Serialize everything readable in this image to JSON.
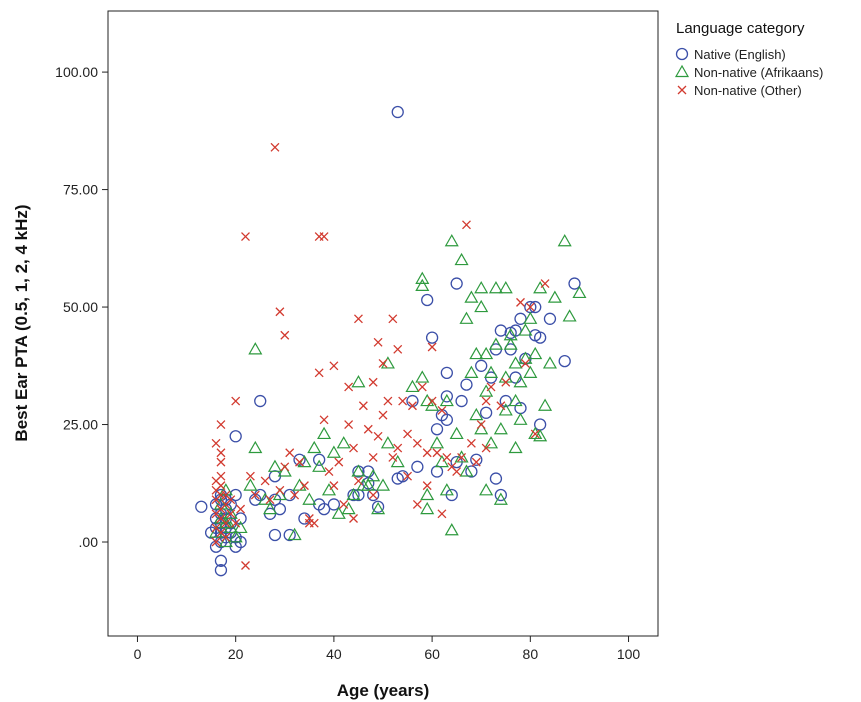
{
  "chart_data": {
    "type": "scatter",
    "xlabel": "Age (years)",
    "ylabel": "Best Ear PTA (0.5, 1, 2, 4 kHz)",
    "xlim": [
      -6,
      106
    ],
    "ylim": [
      -20,
      113
    ],
    "x_ticks": [
      0,
      20,
      40,
      60,
      80,
      100
    ],
    "x_tick_labels": [
      "0",
      "20",
      "40",
      "60",
      "80",
      "100"
    ],
    "y_ticks": [
      0,
      25,
      50,
      75,
      100
    ],
    "y_tick_labels": [
      ".00",
      "25.00",
      "50.00",
      "75.00",
      "100.00"
    ],
    "grid": false,
    "legend": {
      "title": "Language category",
      "placement": "right"
    },
    "series": [
      {
        "name": "Native (English)",
        "marker": "circle",
        "color": "#3b4fa8",
        "points": [
          [
            13,
            7.5
          ],
          [
            15,
            2
          ],
          [
            16,
            -1
          ],
          [
            16,
            3
          ],
          [
            16,
            5
          ],
          [
            16,
            8
          ],
          [
            17,
            -6
          ],
          [
            17,
            -4
          ],
          [
            17,
            0
          ],
          [
            17,
            2
          ],
          [
            17,
            4
          ],
          [
            17,
            6
          ],
          [
            17,
            9
          ],
          [
            17,
            10
          ],
          [
            18,
            1
          ],
          [
            18,
            3
          ],
          [
            18,
            5
          ],
          [
            18,
            7
          ],
          [
            18,
            9
          ],
          [
            19,
            2
          ],
          [
            19,
            4
          ],
          [
            19,
            8
          ],
          [
            20,
            -1
          ],
          [
            20,
            1
          ],
          [
            20,
            10
          ],
          [
            20,
            22.5
          ],
          [
            21,
            0
          ],
          [
            21,
            5
          ],
          [
            24,
            9
          ],
          [
            25,
            30
          ],
          [
            25,
            10
          ],
          [
            27,
            6
          ],
          [
            28,
            1.5
          ],
          [
            28,
            9
          ],
          [
            28,
            14
          ],
          [
            29,
            7
          ],
          [
            31,
            1.5
          ],
          [
            31,
            10
          ],
          [
            33,
            17.5
          ],
          [
            34,
            5
          ],
          [
            37,
            17.5
          ],
          [
            37,
            8
          ],
          [
            38,
            7
          ],
          [
            40,
            8
          ],
          [
            44,
            10
          ],
          [
            45,
            10
          ],
          [
            45,
            15
          ],
          [
            47,
            12.5
          ],
          [
            47,
            15
          ],
          [
            48,
            10
          ],
          [
            49,
            7.5
          ],
          [
            53,
            91.5
          ],
          [
            53,
            13.5
          ],
          [
            54,
            14
          ],
          [
            56,
            30
          ],
          [
            57,
            16
          ],
          [
            59,
            51.5
          ],
          [
            60,
            43.5
          ],
          [
            61,
            24
          ],
          [
            61,
            15
          ],
          [
            62,
            27
          ],
          [
            63,
            31
          ],
          [
            63,
            26
          ],
          [
            63,
            36
          ],
          [
            64,
            10
          ],
          [
            65,
            55
          ],
          [
            65,
            17
          ],
          [
            66,
            30
          ],
          [
            67,
            33.5
          ],
          [
            68,
            15
          ],
          [
            69,
            17.5
          ],
          [
            70,
            37.5
          ],
          [
            71,
            27.5
          ],
          [
            72,
            35
          ],
          [
            73,
            41
          ],
          [
            73,
            13.5
          ],
          [
            74,
            45
          ],
          [
            74,
            10
          ],
          [
            75,
            30
          ],
          [
            76,
            41
          ],
          [
            76,
            44.5
          ],
          [
            77,
            35
          ],
          [
            77,
            45
          ],
          [
            78,
            47.5
          ],
          [
            78,
            28.5
          ],
          [
            79,
            39
          ],
          [
            80,
            50
          ],
          [
            81,
            44
          ],
          [
            81,
            50
          ],
          [
            82,
            25
          ],
          [
            82,
            43.5
          ],
          [
            84,
            47.5
          ],
          [
            87,
            38.5
          ],
          [
            89,
            55
          ]
        ]
      },
      {
        "name": "Non-native (Afrikaans)",
        "marker": "triangle",
        "color": "#2e9a3e",
        "points": [
          [
            16,
            2
          ],
          [
            17,
            5
          ],
          [
            17,
            8
          ],
          [
            18,
            0
          ],
          [
            18,
            4
          ],
          [
            18,
            11
          ],
          [
            19,
            3
          ],
          [
            19,
            6
          ],
          [
            20,
            1
          ],
          [
            21,
            3
          ],
          [
            23,
            12
          ],
          [
            24,
            41
          ],
          [
            24,
            20
          ],
          [
            26,
            9
          ],
          [
            27,
            7
          ],
          [
            28,
            16
          ],
          [
            29,
            10
          ],
          [
            30,
            15
          ],
          [
            32,
            1.5
          ],
          [
            33,
            12
          ],
          [
            34,
            17
          ],
          [
            35,
            9
          ],
          [
            36,
            20
          ],
          [
            37,
            16
          ],
          [
            38,
            23
          ],
          [
            39,
            11
          ],
          [
            40,
            19
          ],
          [
            41,
            6
          ],
          [
            42,
            21
          ],
          [
            43,
            7
          ],
          [
            44,
            10
          ],
          [
            45,
            15
          ],
          [
            45,
            34
          ],
          [
            46,
            12
          ],
          [
            47,
            12
          ],
          [
            48,
            14
          ],
          [
            49,
            7
          ],
          [
            50,
            12
          ],
          [
            51,
            21
          ],
          [
            51,
            38
          ],
          [
            53,
            17
          ],
          [
            56,
            33
          ],
          [
            58,
            35
          ],
          [
            58,
            56
          ],
          [
            58,
            54.5
          ],
          [
            59,
            7
          ],
          [
            59,
            30
          ],
          [
            59,
            10
          ],
          [
            60,
            29
          ],
          [
            61,
            21
          ],
          [
            62,
            17
          ],
          [
            63,
            11
          ],
          [
            63,
            30
          ],
          [
            64,
            64
          ],
          [
            64,
            2.5
          ],
          [
            65,
            23
          ],
          [
            66,
            60
          ],
          [
            66,
            18
          ],
          [
            67,
            47.5
          ],
          [
            67,
            15
          ],
          [
            68,
            52
          ],
          [
            68,
            36
          ],
          [
            69,
            27
          ],
          [
            69,
            40
          ],
          [
            70,
            54
          ],
          [
            70,
            50
          ],
          [
            70,
            24
          ],
          [
            71,
            32
          ],
          [
            71,
            11
          ],
          [
            71,
            40
          ],
          [
            72,
            36
          ],
          [
            72,
            21
          ],
          [
            73,
            54
          ],
          [
            73,
            42
          ],
          [
            74,
            24
          ],
          [
            74,
            9
          ],
          [
            75,
            35
          ],
          [
            75,
            28
          ],
          [
            75,
            54
          ],
          [
            76,
            42
          ],
          [
            76,
            44
          ],
          [
            77,
            30
          ],
          [
            77,
            20
          ],
          [
            77,
            38
          ],
          [
            78,
            26
          ],
          [
            78,
            34
          ],
          [
            79,
            45
          ],
          [
            79,
            39
          ],
          [
            80,
            47.5
          ],
          [
            80,
            36
          ],
          [
            81,
            40
          ],
          [
            81,
            23
          ],
          [
            82,
            54
          ],
          [
            82,
            22.5
          ],
          [
            83,
            29
          ],
          [
            84,
            38
          ],
          [
            85,
            52
          ],
          [
            87,
            64
          ],
          [
            88,
            48
          ],
          [
            90,
            53
          ]
        ]
      },
      {
        "name": "Non-native (Other)",
        "marker": "cross",
        "color": "#d23a2f",
        "points": [
          [
            16,
            0
          ],
          [
            16,
            3
          ],
          [
            16,
            6
          ],
          [
            16,
            9
          ],
          [
            16,
            11
          ],
          [
            16,
            13
          ],
          [
            16,
            21
          ],
          [
            17,
            2
          ],
          [
            17,
            5
          ],
          [
            17,
            7
          ],
          [
            17,
            10
          ],
          [
            17,
            12
          ],
          [
            17,
            14
          ],
          [
            17,
            17
          ],
          [
            17,
            25
          ],
          [
            17,
            19
          ],
          [
            18,
            1
          ],
          [
            18,
            4
          ],
          [
            18,
            8
          ],
          [
            18,
            10
          ],
          [
            19,
            6
          ],
          [
            19,
            9
          ],
          [
            20,
            30
          ],
          [
            20,
            4
          ],
          [
            21,
            7
          ],
          [
            22,
            65
          ],
          [
            22,
            -5
          ],
          [
            23,
            14
          ],
          [
            24,
            10
          ],
          [
            26,
            13
          ],
          [
            27,
            9
          ],
          [
            28,
            84
          ],
          [
            29,
            49
          ],
          [
            29,
            11
          ],
          [
            30,
            44
          ],
          [
            30,
            16
          ],
          [
            31,
            19
          ],
          [
            32,
            10
          ],
          [
            33,
            17
          ],
          [
            34,
            12
          ],
          [
            35,
            5
          ],
          [
            35,
            4
          ],
          [
            36,
            4
          ],
          [
            37,
            65
          ],
          [
            37,
            36
          ],
          [
            38,
            65
          ],
          [
            38,
            26
          ],
          [
            39,
            15
          ],
          [
            40,
            12
          ],
          [
            40,
            37.5
          ],
          [
            41,
            17
          ],
          [
            42,
            8
          ],
          [
            43,
            33
          ],
          [
            43,
            25
          ],
          [
            44,
            20
          ],
          [
            44,
            5
          ],
          [
            45,
            47.5
          ],
          [
            45,
            13
          ],
          [
            46,
            29
          ],
          [
            47,
            24
          ],
          [
            48,
            34
          ],
          [
            48,
            18
          ],
          [
            48,
            10
          ],
          [
            49,
            42.5
          ],
          [
            49,
            22.5
          ],
          [
            50,
            27
          ],
          [
            50,
            38
          ],
          [
            51,
            30
          ],
          [
            52,
            47.5
          ],
          [
            52,
            18
          ],
          [
            53,
            41
          ],
          [
            53,
            20
          ],
          [
            54,
            30
          ],
          [
            55,
            23
          ],
          [
            55,
            14
          ],
          [
            56,
            29
          ],
          [
            57,
            21
          ],
          [
            57,
            8
          ],
          [
            58,
            33
          ],
          [
            59,
            12
          ],
          [
            59,
            19
          ],
          [
            60,
            41.5
          ],
          [
            60,
            30
          ],
          [
            61,
            19
          ],
          [
            62,
            28
          ],
          [
            62,
            6
          ],
          [
            63,
            18
          ],
          [
            64,
            16
          ],
          [
            65,
            15
          ],
          [
            66,
            18
          ],
          [
            67,
            67.5
          ],
          [
            68,
            21
          ],
          [
            69,
            17
          ],
          [
            70,
            25
          ],
          [
            71,
            20
          ],
          [
            71,
            30
          ],
          [
            72,
            33
          ],
          [
            74,
            29
          ],
          [
            75,
            34
          ],
          [
            78,
            51
          ],
          [
            79,
            38
          ],
          [
            80,
            50
          ],
          [
            81,
            23
          ],
          [
            83,
            55
          ]
        ]
      }
    ]
  }
}
